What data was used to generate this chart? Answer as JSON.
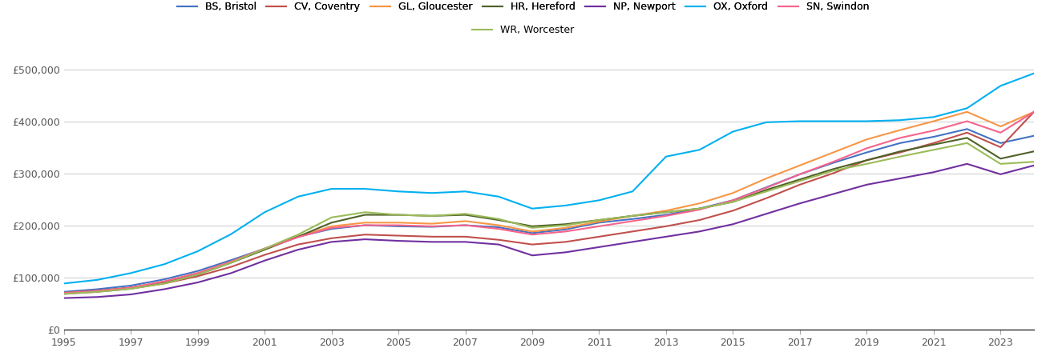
{
  "series": {
    "BS, Bristol": {
      "color": "#4472C4",
      "values": [
        72000,
        77000,
        84000,
        96000,
        112000,
        133000,
        155000,
        178000,
        193000,
        200000,
        198000,
        197000,
        200000,
        196000,
        185000,
        192000,
        205000,
        212000,
        220000,
        232000,
        248000,
        273000,
        298000,
        320000,
        340000,
        358000,
        370000,
        385000,
        358000,
        372000
      ]
    },
    "CV, Coventry": {
      "color": "#C0504D",
      "values": [
        68000,
        72000,
        78000,
        88000,
        102000,
        120000,
        143000,
        163000,
        175000,
        182000,
        180000,
        178000,
        178000,
        172000,
        163000,
        168000,
        178000,
        188000,
        198000,
        210000,
        228000,
        252000,
        278000,
        300000,
        325000,
        340000,
        358000,
        378000,
        350000,
        418000
      ]
    },
    "GL, Gloucester": {
      "color": "#F79646",
      "values": [
        70000,
        74000,
        80000,
        92000,
        108000,
        130000,
        155000,
        178000,
        198000,
        205000,
        205000,
        203000,
        208000,
        200000,
        188000,
        195000,
        207000,
        218000,
        228000,
        242000,
        262000,
        290000,
        315000,
        340000,
        365000,
        383000,
        400000,
        418000,
        390000,
        418000
      ]
    },
    "HR, Hereford": {
      "color": "#4F6228",
      "values": [
        70000,
        74000,
        80000,
        90000,
        105000,
        128000,
        153000,
        178000,
        205000,
        220000,
        220000,
        218000,
        220000,
        210000,
        198000,
        202000,
        210000,
        218000,
        225000,
        232000,
        245000,
        268000,
        288000,
        308000,
        325000,
        342000,
        355000,
        368000,
        328000,
        342000
      ]
    },
    "NP, Newport": {
      "color": "#7030A0",
      "values": [
        60000,
        62000,
        67000,
        77000,
        90000,
        108000,
        132000,
        153000,
        168000,
        173000,
        170000,
        168000,
        168000,
        163000,
        142000,
        148000,
        158000,
        168000,
        178000,
        188000,
        202000,
        222000,
        242000,
        260000,
        278000,
        290000,
        302000,
        318000,
        298000,
        315000
      ]
    },
    "OX, Oxford": {
      "color": "#00B0F0",
      "values": [
        88000,
        95000,
        108000,
        125000,
        150000,
        183000,
        225000,
        255000,
        270000,
        270000,
        265000,
        262000,
        265000,
        255000,
        232000,
        238000,
        248000,
        265000,
        332000,
        345000,
        380000,
        398000,
        400000,
        400000,
        400000,
        402000,
        408000,
        425000,
        468000,
        492000
      ]
    },
    "SN, Swindon": {
      "color": "#F6648B",
      "values": [
        70000,
        74000,
        80000,
        92000,
        108000,
        130000,
        155000,
        177000,
        195000,
        200000,
        200000,
        198000,
        200000,
        193000,
        182000,
        188000,
        198000,
        208000,
        218000,
        230000,
        248000,
        272000,
        298000,
        322000,
        348000,
        368000,
        382000,
        400000,
        378000,
        418000
      ]
    },
    "WR, Worcester": {
      "color": "#9BBB59",
      "values": [
        68000,
        72000,
        78000,
        88000,
        105000,
        128000,
        155000,
        182000,
        215000,
        225000,
        220000,
        218000,
        222000,
        212000,
        195000,
        200000,
        210000,
        218000,
        225000,
        232000,
        245000,
        265000,
        285000,
        305000,
        318000,
        332000,
        345000,
        358000,
        318000,
        322000
      ]
    }
  },
  "years": [
    1995,
    1996,
    1997,
    1998,
    1999,
    2000,
    2001,
    2002,
    2003,
    2004,
    2005,
    2006,
    2007,
    2008,
    2009,
    2010,
    2011,
    2012,
    2013,
    2014,
    2015,
    2016,
    2017,
    2018,
    2019,
    2020,
    2021,
    2022,
    2023,
    2024
  ],
  "xlim": [
    1995,
    2024
  ],
  "ylim": [
    0,
    520000
  ],
  "yticks": [
    0,
    100000,
    200000,
    300000,
    400000,
    500000
  ],
  "xticks": [
    1995,
    1997,
    1999,
    2001,
    2003,
    2005,
    2007,
    2009,
    2011,
    2013,
    2015,
    2017,
    2019,
    2021,
    2023
  ],
  "background_color": "#ffffff",
  "grid_color": "#d0d0d0",
  "legend_row1": [
    "BS, Bristol",
    "CV, Coventry",
    "GL, Gloucester",
    "HR, Hereford",
    "NP, Newport",
    "OX, Oxford",
    "SN, Swindon"
  ],
  "legend_row2": [
    "WR, Worcester"
  ]
}
